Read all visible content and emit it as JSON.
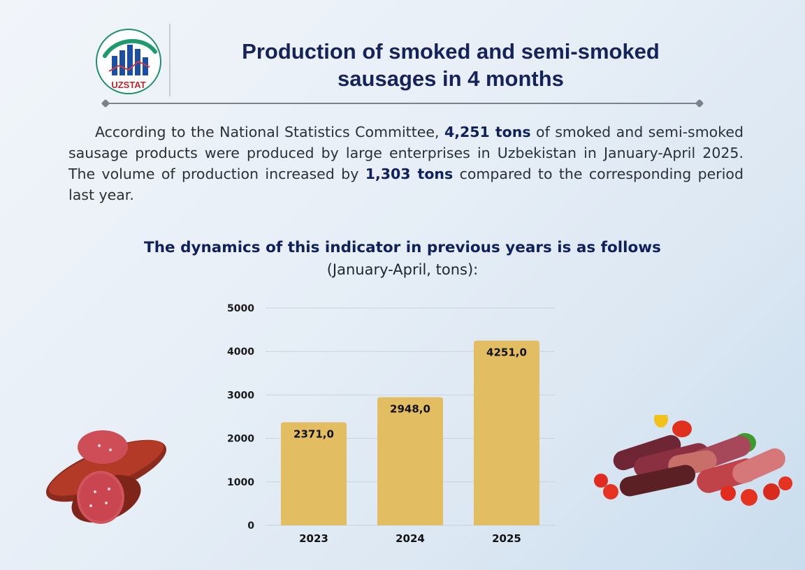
{
  "header": {
    "logo_text": "UZSTAT",
    "title_line1": "Production of smoked and semi-smoked",
    "title_line2": "sausages in 4 months"
  },
  "intro": {
    "p1": "According to the National Statistics Committee, ",
    "b1": "4,251 tons",
    "p2": " of smoked and semi-smoked sausage products were produced by large enterprises in Uzbekistan in January-April 2025. The volume of production increased by ",
    "b2": "1,303 tons",
    "p3": " compared to the corresponding period last year."
  },
  "chart_heading": {
    "title": "The dynamics of this indicator in previous years is as follows",
    "subtitle": "(January-April, tons):"
  },
  "chart_data": {
    "type": "bar",
    "categories": [
      "2023",
      "2024",
      "2025"
    ],
    "values": [
      2371.0,
      2948.0,
      4251.0
    ],
    "value_labels": [
      "2371,0",
      "2948,0",
      "4251,0"
    ],
    "ylim": [
      0,
      5000
    ],
    "yticks": [
      0,
      1000,
      2000,
      3000,
      4000,
      5000
    ],
    "grid": true,
    "bar_color": "#e3bd61",
    "grid_color": "#c9d1d9"
  }
}
